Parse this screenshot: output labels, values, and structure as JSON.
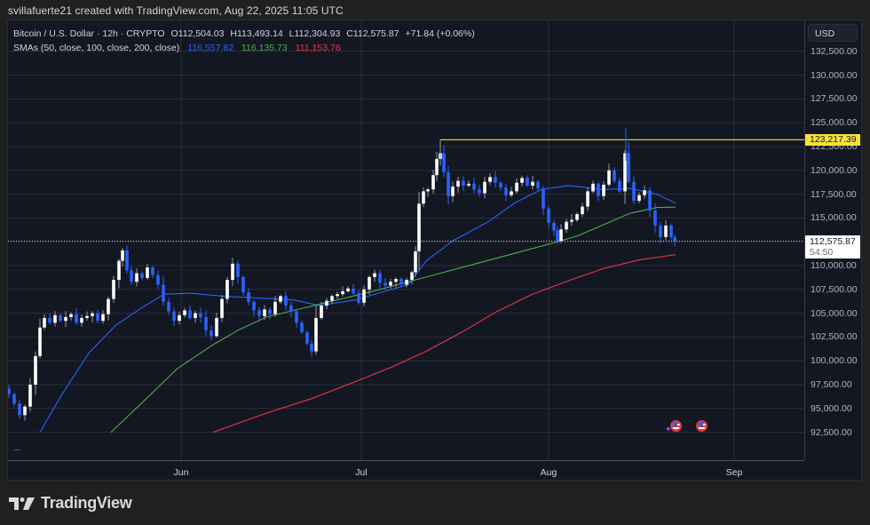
{
  "header": {
    "credit": "svillafuerte21 created with TradingView.com, Aug 22, 2025 11:05 UTC"
  },
  "legend": {
    "symbol": "Bitcoin / U.S. Dollar · 12h · CRYPTO",
    "open": "O112,504.03",
    "high": "H113,493.14",
    "low": "L112,304.93",
    "close": "C112,575.87",
    "change": "+71.84 (+0.06%)",
    "sma_label": "SMAs (50, close, 100, close, 200, close)",
    "sma50": "116,557.82",
    "sma100": "116,135.73",
    "sma200": "111,153.76"
  },
  "price_axis": {
    "currency": "USD",
    "ticks": [
      "132,500.00",
      "130,000.00",
      "127,500.00",
      "125,000.00",
      "122,500.00",
      "120,000.00",
      "117,500.00",
      "115,000.00",
      "112,500.00",
      "110,000.00",
      "107,500.00",
      "105,000.00",
      "102,500.00",
      "100,000.00",
      "97,500.00",
      "95,000.00",
      "92,500.00"
    ],
    "level_tag": "123,217.39",
    "last_price_tag": "112,575.87",
    "countdown": "54:50"
  },
  "time_axis": {
    "labels": [
      "Jun",
      "Jul",
      "Aug",
      "Sep"
    ]
  },
  "footer": {
    "brand": "TradingView",
    "more_button": "..."
  },
  "colors": {
    "up_candle": "#ffffff",
    "down_candle": "#2962ff",
    "sma50": "#2962ff",
    "sma100": "#4caf50",
    "sma200": "#f23645",
    "horizontal_line": "#f7e337",
    "background": "#131722"
  },
  "chart_data": {
    "type": "candlestick",
    "title": "Bitcoin / U.S. Dollar · 12h · CRYPTO",
    "xlabel": "",
    "ylabel": "USD",
    "x_tick_labels": [
      "Jun",
      "Jul",
      "Aug",
      "Sep"
    ],
    "ylim": [
      91500,
      133500
    ],
    "grid": true,
    "horizontal_line": 123217.39,
    "last_price": 112575.87,
    "waypoints_close": [
      [
        10,
        96500
      ],
      [
        16,
        95500
      ],
      [
        22,
        94300
      ],
      [
        28,
        95200
      ],
      [
        34,
        97500
      ],
      [
        40,
        100500
      ],
      [
        45,
        103500
      ],
      [
        50,
        104500
      ],
      [
        56,
        104000
      ],
      [
        62,
        104800
      ],
      [
        68,
        104200
      ],
      [
        74,
        104600
      ],
      [
        80,
        104900
      ],
      [
        86,
        104000
      ],
      [
        92,
        104500
      ],
      [
        98,
        104700
      ],
      [
        104,
        105000
      ],
      [
        110,
        104200
      ],
      [
        116,
        104900
      ],
      [
        122,
        106500
      ],
      [
        128,
        108500
      ],
      [
        134,
        110500
      ],
      [
        138,
        111600
      ],
      [
        143,
        109500
      ],
      [
        148,
        108300
      ],
      [
        154,
        109200
      ],
      [
        160,
        108700
      ],
      [
        166,
        109800
      ],
      [
        172,
        109000
      ],
      [
        178,
        108000
      ],
      [
        184,
        106200
      ],
      [
        190,
        105200
      ],
      [
        196,
        104200
      ],
      [
        202,
        104800
      ],
      [
        208,
        105300
      ],
      [
        214,
        104500
      ],
      [
        220,
        105000
      ],
      [
        226,
        104600
      ],
      [
        232,
        103200
      ],
      [
        238,
        102600
      ],
      [
        244,
        104500
      ],
      [
        250,
        106500
      ],
      [
        256,
        108500
      ],
      [
        262,
        110200
      ],
      [
        268,
        108800
      ],
      [
        274,
        107200
      ],
      [
        280,
        106200
      ],
      [
        286,
        105300
      ],
      [
        292,
        104700
      ],
      [
        298,
        105400
      ],
      [
        304,
        104900
      ],
      [
        310,
        106200
      ],
      [
        316,
        106800
      ],
      [
        322,
        105800
      ],
      [
        328,
        105200
      ],
      [
        334,
        104000
      ],
      [
        340,
        103000
      ],
      [
        346,
        101800
      ],
      [
        351,
        101000
      ],
      [
        356,
        104500
      ],
      [
        362,
        105800
      ],
      [
        368,
        106300
      ],
      [
        374,
        106800
      ],
      [
        380,
        107000
      ],
      [
        386,
        107300
      ],
      [
        392,
        107600
      ],
      [
        398,
        107100
      ],
      [
        404,
        106100
      ],
      [
        410,
        107500
      ],
      [
        416,
        108800
      ],
      [
        422,
        109200
      ],
      [
        428,
        108200
      ],
      [
        434,
        107900
      ],
      [
        440,
        108300
      ],
      [
        446,
        108600
      ],
      [
        452,
        108000
      ],
      [
        458,
        108500
      ],
      [
        464,
        109300
      ],
      [
        468,
        111500
      ],
      [
        472,
        116500
      ],
      [
        477,
        117800
      ],
      [
        482,
        118000
      ],
      [
        488,
        119500
      ],
      [
        492,
        121200
      ],
      [
        496,
        121800
      ],
      [
        500,
        119800
      ],
      [
        505,
        117300
      ],
      [
        510,
        118300
      ],
      [
        516,
        118900
      ],
      [
        522,
        118400
      ],
      [
        528,
        118600
      ],
      [
        534,
        118000
      ],
      [
        540,
        117600
      ],
      [
        546,
        118800
      ],
      [
        552,
        119300
      ],
      [
        558,
        118700
      ],
      [
        564,
        118200
      ],
      [
        570,
        117400
      ],
      [
        576,
        117800
      ],
      [
        582,
        118700
      ],
      [
        588,
        119200
      ],
      [
        594,
        118400
      ],
      [
        600,
        118800
      ],
      [
        606,
        118100
      ],
      [
        612,
        116000
      ],
      [
        618,
        114500
      ],
      [
        624,
        113700
      ],
      [
        628,
        112600
      ],
      [
        632,
        113800
      ],
      [
        638,
        114600
      ],
      [
        644,
        114800
      ],
      [
        650,
        115400
      ],
      [
        656,
        116200
      ],
      [
        662,
        117800
      ],
      [
        668,
        118600
      ],
      [
        674,
        117300
      ],
      [
        680,
        118500
      ],
      [
        686,
        120000
      ],
      [
        692,
        118900
      ],
      [
        698,
        117800
      ],
      [
        704,
        121800
      ],
      [
        708,
        118800
      ],
      [
        714,
        116800
      ],
      [
        720,
        117400
      ],
      [
        726,
        117900
      ],
      [
        732,
        115800
      ],
      [
        738,
        114200
      ],
      [
        744,
        113000
      ],
      [
        750,
        114200
      ],
      [
        756,
        113000
      ],
      [
        760,
        112575.87
      ]
    ],
    "series": [
      {
        "name": "SMA 50",
        "color": "#2962ff",
        "last": 116557.82,
        "points": [
          [
            45,
            92500
          ],
          [
            70,
            96500
          ],
          [
            100,
            100800
          ],
          [
            130,
            103700
          ],
          [
            160,
            105600
          ],
          [
            185,
            107000
          ],
          [
            215,
            107100
          ],
          [
            250,
            106800
          ],
          [
            290,
            106600
          ],
          [
            330,
            106400
          ],
          [
            360,
            105800
          ],
          [
            400,
            106400
          ],
          [
            430,
            107200
          ],
          [
            460,
            108000
          ],
          [
            480,
            110500
          ],
          [
            510,
            112600
          ],
          [
            550,
            114600
          ],
          [
            580,
            116600
          ],
          [
            610,
            118000
          ],
          [
            640,
            118400
          ],
          [
            680,
            118000
          ],
          [
            710,
            118100
          ],
          [
            740,
            117500
          ],
          [
            761,
            116557
          ]
        ]
      },
      {
        "name": "SMA 100",
        "color": "#4caf50",
        "last": 116135.73,
        "points": [
          [
            125,
            92500
          ],
          [
            160,
            95600
          ],
          [
            200,
            99200
          ],
          [
            240,
            101700
          ],
          [
            270,
            103300
          ],
          [
            300,
            104600
          ],
          [
            340,
            105500
          ],
          [
            380,
            106400
          ],
          [
            420,
            107300
          ],
          [
            460,
            108300
          ],
          [
            500,
            109300
          ],
          [
            540,
            110300
          ],
          [
            580,
            111300
          ],
          [
            620,
            112300
          ],
          [
            650,
            113100
          ],
          [
            680,
            114300
          ],
          [
            710,
            115500
          ],
          [
            740,
            116100
          ],
          [
            761,
            116135
          ]
        ]
      },
      {
        "name": "SMA 200",
        "color": "#f23645",
        "last": 111153.76,
        "points": [
          [
            240,
            92500
          ],
          [
            300,
            94500
          ],
          [
            350,
            96000
          ],
          [
            400,
            97800
          ],
          [
            440,
            99300
          ],
          [
            480,
            101000
          ],
          [
            520,
            103000
          ],
          [
            560,
            105200
          ],
          [
            600,
            107000
          ],
          [
            640,
            108400
          ],
          [
            680,
            109700
          ],
          [
            720,
            110600
          ],
          [
            761,
            111153
          ]
        ]
      }
    ]
  }
}
